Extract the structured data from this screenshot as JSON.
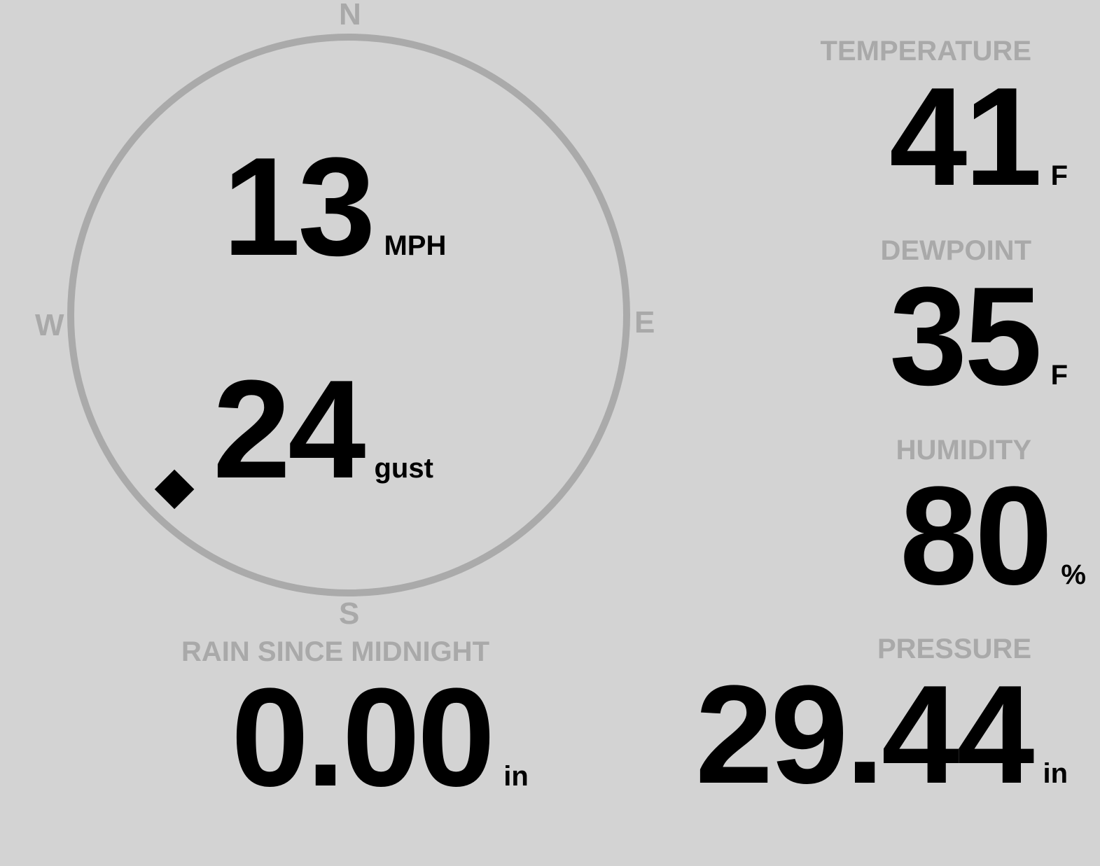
{
  "wind": {
    "speed": "13",
    "speed_unit": "MPH",
    "gust": "24",
    "gust_unit": "gust",
    "direction_deg": 225,
    "cardinals": {
      "n": "N",
      "e": "E",
      "s": "S",
      "w": "W"
    }
  },
  "temperature": {
    "label": "TEMPERATURE",
    "value": "41",
    "unit": "F"
  },
  "dewpoint": {
    "label": "DEWPOINT",
    "value": "35",
    "unit": "F"
  },
  "humidity": {
    "label": "HUMIDITY",
    "value": "80",
    "unit": "%"
  },
  "pressure": {
    "label": "PRESSURE",
    "value": "29.44",
    "unit": "in"
  },
  "rain": {
    "label": "RAIN SINCE MIDNIGHT",
    "value": "0.00",
    "unit": "in"
  },
  "colors": {
    "background": "#d3d3d3",
    "label": "#a9a9a9",
    "ring": "#aaaaaa",
    "value": "#000000"
  }
}
